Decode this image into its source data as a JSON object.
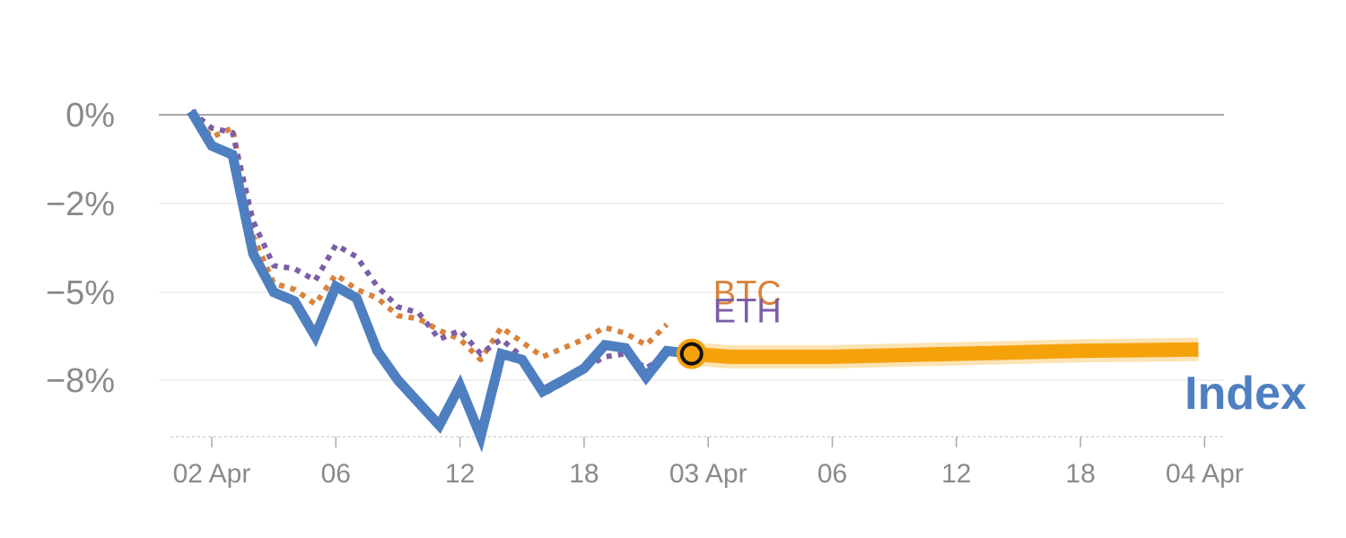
{
  "chart_data": {
    "type": "line",
    "title": "",
    "xlabel": "",
    "ylabel": "",
    "y_ticks": [
      {
        "value": 0,
        "label": "0%"
      },
      {
        "value": -2,
        "label": "−2%"
      },
      {
        "value": -5,
        "label": "−5%"
      },
      {
        "value": -8,
        "label": "−8%"
      }
    ],
    "y_scale_note": "non-linear: ticks at 0, -2, -5, -8 are evenly spaced",
    "ylim": [
      -10,
      0.5
    ],
    "x_ticks": [
      {
        "t": 0,
        "label": "02 Apr"
      },
      {
        "t": 6,
        "label": "06"
      },
      {
        "t": 12,
        "label": "12"
      },
      {
        "t": 18,
        "label": "18"
      },
      {
        "t": 24,
        "label": "03 Apr"
      },
      {
        "t": 30,
        "label": "06"
      },
      {
        "t": 36,
        "label": "12"
      },
      {
        "t": 42,
        "label": "18"
      },
      {
        "t": 48,
        "label": "04 Apr"
      }
    ],
    "xlim": [
      -2,
      49
    ],
    "series": [
      {
        "name": "Index",
        "style": "solid",
        "color": "#4e7fc0",
        "x": [
          -1,
          0,
          1,
          2,
          3,
          4,
          5,
          6,
          7,
          8,
          9,
          10,
          11,
          12,
          13,
          14,
          15,
          16,
          17,
          18,
          19,
          20,
          21,
          22,
          23.2
        ],
        "y": [
          0.2,
          -0.7,
          -0.9,
          -3.7,
          -5.0,
          -5.3,
          -6.5,
          -4.8,
          -5.2,
          -7.0,
          -8.0,
          -8.8,
          -9.6,
          -8.2,
          -10.3,
          -7.1,
          -7.3,
          -8.4,
          -8.0,
          -7.6,
          -6.8,
          -6.9,
          -7.9,
          -7.0,
          -7.1
        ]
      },
      {
        "name": "BTC",
        "style": "dotted",
        "color": "#d9823a",
        "x": [
          -1,
          0,
          1,
          2,
          3,
          4,
          5,
          6,
          7,
          8,
          9,
          10,
          11,
          12,
          13,
          14,
          15,
          16,
          17,
          18,
          19,
          20,
          21,
          22
        ],
        "y": [
          0.1,
          -0.5,
          -0.3,
          -3.1,
          -4.7,
          -4.9,
          -5.4,
          -4.4,
          -4.9,
          -5.2,
          -5.8,
          -5.9,
          -6.3,
          -6.6,
          -7.3,
          -6.2,
          -6.7,
          -7.2,
          -6.9,
          -6.6,
          -6.2,
          -6.4,
          -6.8,
          -6.1
        ]
      },
      {
        "name": "ETH",
        "style": "dotted",
        "color": "#7b5ea7",
        "x": [
          -1,
          0,
          1,
          2,
          3,
          4,
          5,
          6,
          7,
          8,
          9,
          10,
          11,
          12,
          13,
          14,
          15,
          16,
          17,
          18,
          19,
          20,
          21,
          22,
          23.2
        ],
        "y": [
          0.2,
          -0.3,
          -0.4,
          -2.6,
          -4.1,
          -4.2,
          -4.6,
          -3.4,
          -3.8,
          -4.8,
          -5.5,
          -5.7,
          -6.6,
          -6.3,
          -7.1,
          -6.6,
          -7.2,
          -8.5,
          -8.1,
          -7.6,
          -7.2,
          -7.1,
          -7.6,
          -7.1,
          -7.0
        ]
      }
    ],
    "projection": {
      "name": "Index projection",
      "color": "#f5a20a",
      "x": [
        23.2,
        25,
        30,
        36,
        42,
        47.7
      ],
      "y": [
        -7.1,
        -7.2,
        -7.2,
        -7.1,
        -7.0,
        -6.95
      ]
    },
    "marker": {
      "x": 23.2,
      "y": -7.1
    },
    "labels": {
      "btc": "BTC",
      "eth": "ETH",
      "index": "Index"
    }
  }
}
